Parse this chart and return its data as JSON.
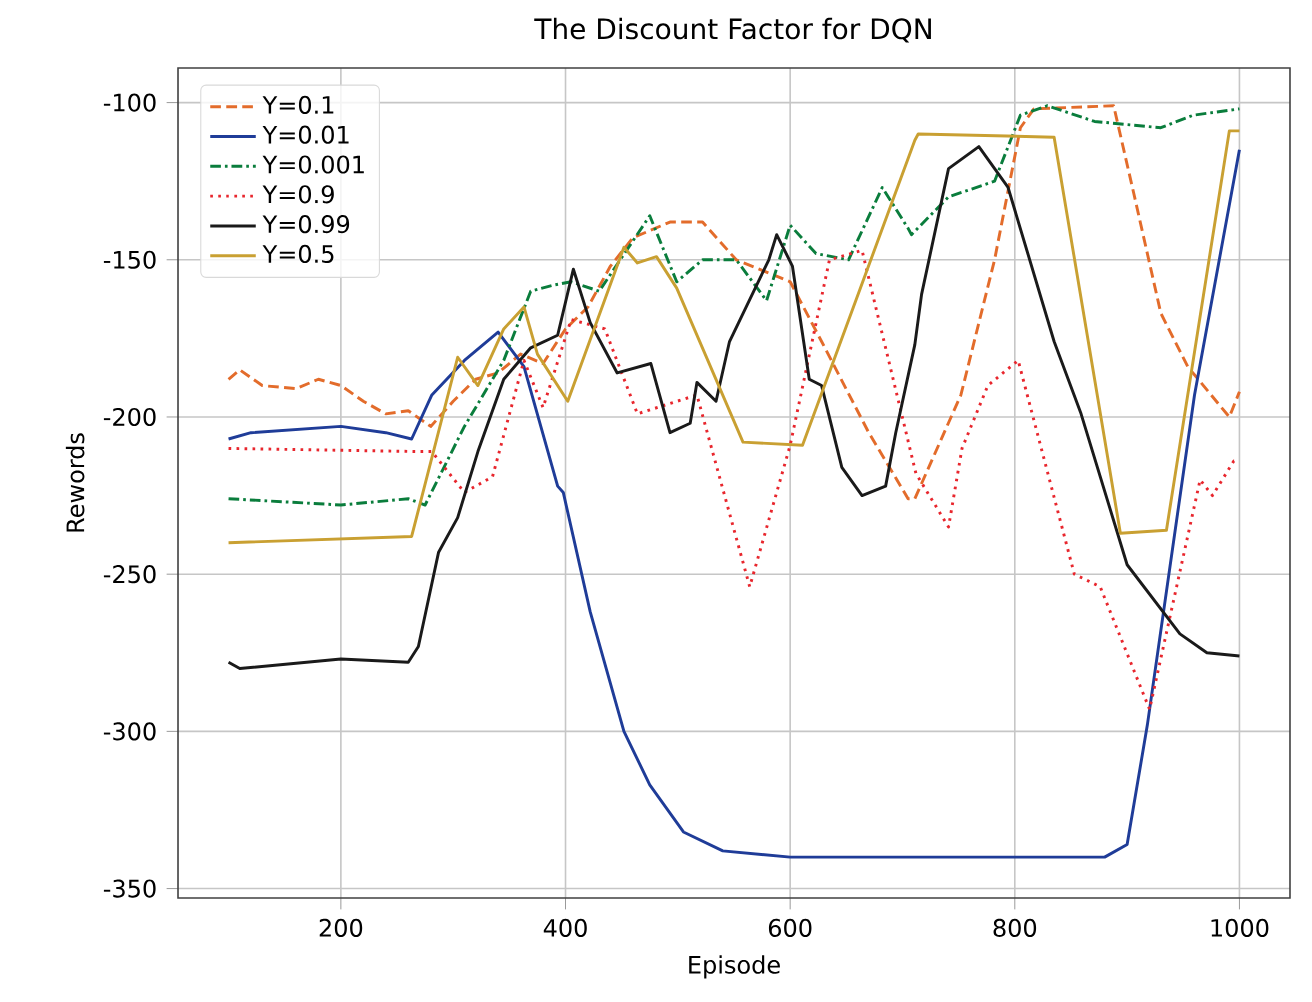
{
  "chart_data": {
    "type": "line",
    "title": "The Discount Factor for DQN",
    "xlabel": "Episode",
    "ylabel": "Rewords",
    "xlim": [
      55,
      1045
    ],
    "ylim": [
      -353,
      -89
    ],
    "xticks": [
      200,
      400,
      600,
      800,
      1000
    ],
    "yticks": [
      -350,
      -300,
      -250,
      -200,
      -150,
      -100
    ],
    "grid": true,
    "legend": "top left",
    "series": [
      {
        "name": "Y=0.1",
        "color": "#e36c2b",
        "line_style": "dashed",
        "x": [
          100,
          110,
          130,
          160,
          180,
          200,
          220,
          240,
          260,
          280,
          300,
          320,
          340,
          360,
          380,
          400,
          420,
          440,
          460,
          493,
          522,
          552,
          600,
          628,
          670,
          705,
          711,
          752,
          782,
          805,
          817,
          888,
          906,
          930,
          954,
          991,
          1000
        ],
        "values": [
          -188,
          -185,
          -190,
          -191,
          -188,
          -190,
          -195,
          -199,
          -198,
          -203,
          -195,
          -188,
          -186,
          -180,
          -183,
          -172,
          -165,
          -152,
          -143,
          -138,
          -138,
          -150,
          -157,
          -176,
          -205,
          -226,
          -226,
          -193,
          -150,
          -108,
          -102,
          -101,
          -129,
          -167,
          -184,
          -200,
          -192
        ]
      },
      {
        "name": "Y=0.01",
        "color": "#1f3c98",
        "line_style": "solid",
        "x": [
          100,
          120,
          200,
          240,
          263,
          281,
          310,
          340,
          363,
          393,
          398,
          422,
          452,
          475,
          505,
          540,
          600,
          700,
          800,
          880,
          900,
          918,
          960,
          1000
        ],
        "values": [
          -207,
          -205,
          -203,
          -205,
          -207,
          -193,
          -182,
          -173,
          -184,
          -222,
          -224,
          -262,
          -300,
          -317,
          -332,
          -338,
          -340,
          -340,
          -340,
          -340,
          -336,
          -298,
          -193,
          -115
        ]
      },
      {
        "name": "Y=0.001",
        "color": "#0a7d3c",
        "line_style": "dashdot",
        "x": [
          100,
          200,
          260,
          275,
          310,
          345,
          369,
          390,
          405,
          430,
          475,
          499,
          522,
          552,
          579,
          600,
          623,
          652,
          682,
          705,
          708,
          741,
          782,
          805,
          829,
          871,
          930,
          959,
          1000
        ],
        "values": [
          -226,
          -228,
          -226,
          -228,
          -203,
          -182,
          -160,
          -158,
          -157,
          -160,
          -136,
          -157,
          -150,
          -150,
          -163,
          -139,
          -148,
          -150,
          -127,
          -140,
          -142,
          -130,
          -125,
          -104,
          -101,
          -106,
          -108,
          -104,
          -102
        ]
      },
      {
        "name": "Y=0.9",
        "color": "#e8262d",
        "line_style": "dotted",
        "x": [
          100,
          270,
          281,
          310,
          335,
          363,
          380,
          405,
          435,
          464,
          517,
          564,
          600,
          635,
          664,
          712,
          741,
          753,
          776,
          803,
          853,
          876,
          920,
          965,
          976,
          995,
          1000
        ],
        "values": [
          -210,
          -211,
          -211,
          -224,
          -219,
          -182,
          -197,
          -169,
          -172,
          -199,
          -193,
          -254,
          -209,
          -150,
          -147,
          -218,
          -235,
          -210,
          -190,
          -182,
          -250,
          -254,
          -293,
          -220,
          -225,
          -214,
          -214
        ]
      },
      {
        "name": "Y=0.99",
        "color": "#1a1a1a",
        "line_style": "solid",
        "x": [
          100,
          110,
          200,
          260,
          269,
          287,
          304,
          322,
          345,
          369,
          393,
          407,
          422,
          446,
          476,
          493,
          511,
          517,
          534,
          546,
          581,
          588,
          602,
          617,
          628,
          646,
          664,
          685,
          694,
          711,
          717,
          741,
          768,
          794,
          835,
          859,
          900,
          947,
          971,
          1000
        ],
        "values": [
          -278,
          -280,
          -277,
          -278,
          -273,
          -243,
          -232,
          -211,
          -188,
          -178,
          -174,
          -153,
          -170,
          -186,
          -183,
          -205,
          -202,
          -189,
          -195,
          -176,
          -150,
          -142,
          -152,
          -188,
          -190,
          -216,
          -225,
          -222,
          -205,
          -177,
          -161,
          -121,
          -114,
          -127,
          -176,
          -199,
          -247,
          -269,
          -275,
          -276
        ]
      },
      {
        "name": "Y=0.5",
        "color": "#c9a032",
        "line_style": "solid",
        "x": [
          100,
          263,
          304,
          322,
          345,
          363,
          375,
          402,
          452,
          464,
          481,
          499,
          558,
          611,
          711,
          714,
          835,
          894,
          935,
          991,
          1000
        ],
        "values": [
          -240,
          -238,
          -181,
          -190,
          -172,
          -165,
          -180,
          -195,
          -146,
          -151,
          -149,
          -159,
          -208,
          -209,
          -112,
          -110,
          -111,
          -237,
          -236,
          -109,
          -109
        ]
      }
    ]
  }
}
